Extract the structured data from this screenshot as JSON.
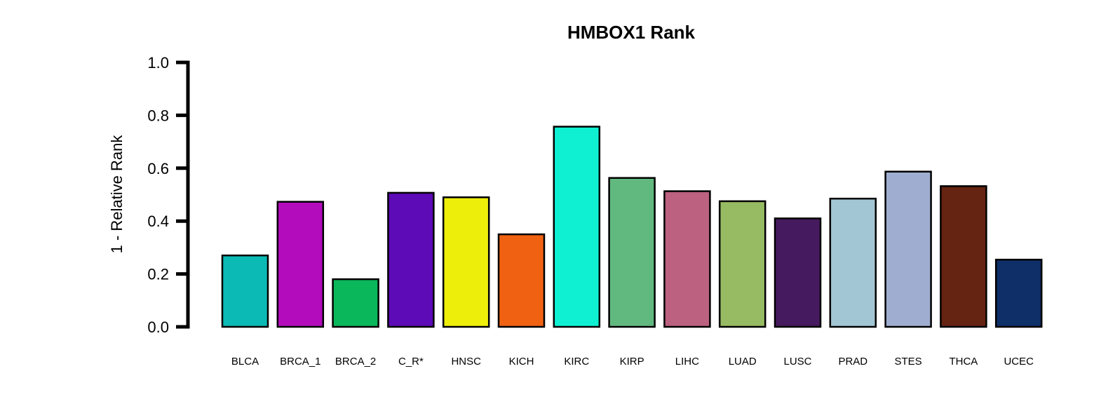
{
  "chart_data": {
    "type": "bar",
    "title": "HMBOX1 Rank",
    "xlabel": "",
    "ylabel": "1 - Relative Rank",
    "ylim": [
      0,
      1.0
    ],
    "yticks": [
      "0.0",
      "0.2",
      "0.4",
      "0.6",
      "0.8",
      "1.0"
    ],
    "ytick_values": [
      0,
      0.2,
      0.4,
      0.6,
      0.8,
      1.0
    ],
    "categories": [
      "BLCA",
      "BRCA_1",
      "BRCA_2",
      "C_R*",
      "HNSC",
      "KICH",
      "KIRC",
      "KIRP",
      "LIHC",
      "LUAD",
      "LUSC",
      "PRAD",
      "STES",
      "THCA",
      "UCEC"
    ],
    "values": [
      0.27,
      0.473,
      0.18,
      0.507,
      0.49,
      0.35,
      0.757,
      0.563,
      0.513,
      0.475,
      0.41,
      0.485,
      0.587,
      0.532,
      0.254
    ],
    "colors": [
      "#0bbab4",
      "#b30cbc",
      "#0ab85b",
      "#5d0ab7",
      "#eeee0b",
      "#f06212",
      "#0ff0d3",
      "#62b97f",
      "#bc617f",
      "#97bb63",
      "#461a5f",
      "#a2c6d3",
      "#9faed0",
      "#652412",
      "#0e2f67"
    ],
    "grid": false,
    "legend": "none"
  }
}
